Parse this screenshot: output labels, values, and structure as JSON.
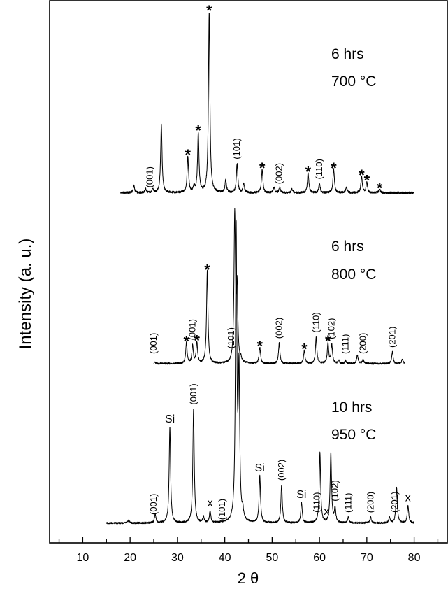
{
  "chart_data": {
    "type": "line",
    "xlabel": "2 θ",
    "ylabel": "Intensity (a. u.)",
    "xlim": [
      3,
      87
    ],
    "x_ticks": [
      10,
      20,
      30,
      40,
      50,
      60,
      70,
      80
    ],
    "grid": false,
    "legend": "none",
    "series": [
      {
        "conditions": [
          "6 hrs",
          "700 °C"
        ],
        "x_range": [
          18,
          80
        ],
        "baseline": 0.04,
        "peaks": [
          {
            "x": 20.8,
            "h": 0.04
          },
          {
            "x": 23.3,
            "h": 0.02
          },
          {
            "x": 24.8,
            "h": 0.02
          },
          {
            "x": 26.6,
            "h": 0.38
          },
          {
            "x": 32.2,
            "h": 0.2
          },
          {
            "x": 33.5,
            "h": 0.03
          },
          {
            "x": 34.4,
            "h": 0.33
          },
          {
            "x": 36.7,
            "h": 1.0
          },
          {
            "x": 40.2,
            "h": 0.07
          },
          {
            "x": 42.6,
            "h": 0.16
          },
          {
            "x": 44.0,
            "h": 0.05
          },
          {
            "x": 47.9,
            "h": 0.13
          },
          {
            "x": 50.4,
            "h": 0.03
          },
          {
            "x": 51.6,
            "h": 0.03
          },
          {
            "x": 54.2,
            "h": 0.02
          },
          {
            "x": 57.6,
            "h": 0.11
          },
          {
            "x": 60.0,
            "h": 0.05
          },
          {
            "x": 63.0,
            "h": 0.13
          },
          {
            "x": 65.7,
            "h": 0.03
          },
          {
            "x": 68.9,
            "h": 0.09
          },
          {
            "x": 70.0,
            "h": 0.06
          },
          {
            "x": 72.7,
            "h": 0.02
          }
        ],
        "annotations": [
          {
            "text": "(001)",
            "x": 24.2,
            "kind": "hkl"
          },
          {
            "text": "*",
            "x": 32.2,
            "kind": "star"
          },
          {
            "text": "*",
            "x": 34.4,
            "kind": "star"
          },
          {
            "text": "*",
            "x": 36.7,
            "kind": "star"
          },
          {
            "text": "(101)",
            "x": 42.6,
            "kind": "hkl"
          },
          {
            "text": "*",
            "x": 47.9,
            "kind": "star"
          },
          {
            "text": "(002)",
            "x": 51.5,
            "kind": "hkl"
          },
          {
            "text": "*",
            "x": 57.6,
            "kind": "star"
          },
          {
            "text": "(110)",
            "x": 60.0,
            "kind": "hkl"
          },
          {
            "text": "*",
            "x": 63.0,
            "kind": "star"
          },
          {
            "text": "*",
            "x": 68.9,
            "kind": "star"
          },
          {
            "text": "*",
            "x": 70.0,
            "kind": "star"
          },
          {
            "text": "*",
            "x": 72.7,
            "kind": "star"
          }
        ]
      },
      {
        "conditions": [
          "6 hrs",
          "800 °C"
        ],
        "x_range": [
          25,
          78
        ],
        "baseline": 0.01,
        "peaks": [
          {
            "x": 25.2,
            "h": 0.01
          },
          {
            "x": 31.9,
            "h": 0.14
          },
          {
            "x": 33.2,
            "h": 0.12
          },
          {
            "x": 34.1,
            "h": 0.14
          },
          {
            "x": 36.3,
            "h": 0.63
          },
          {
            "x": 42.1,
            "h": 1.0
          },
          {
            "x": 42.6,
            "h": 0.48
          },
          {
            "x": 43.4,
            "h": 0.02
          },
          {
            "x": 47.4,
            "h": 0.11
          },
          {
            "x": 51.5,
            "h": 0.14
          },
          {
            "x": 56.8,
            "h": 0.09
          },
          {
            "x": 59.3,
            "h": 0.18
          },
          {
            "x": 61.8,
            "h": 0.14
          },
          {
            "x": 62.6,
            "h": 0.13
          },
          {
            "x": 64.1,
            "h": 0.02
          },
          {
            "x": 65.5,
            "h": 0.02
          },
          {
            "x": 68.0,
            "h": 0.06
          },
          {
            "x": 69.2,
            "h": 0.03
          },
          {
            "x": 75.4,
            "h": 0.08
          },
          {
            "x": 77.5,
            "h": 0.03
          }
        ],
        "annotations": [
          {
            "text": "(001)",
            "x": 25.0,
            "kind": "hkl"
          },
          {
            "text": "*",
            "x": 31.9,
            "kind": "star"
          },
          {
            "text": "(001)",
            "x": 33.2,
            "kind": "hkl"
          },
          {
            "text": "*",
            "x": 34.1,
            "kind": "star"
          },
          {
            "text": "*",
            "x": 36.3,
            "kind": "star"
          },
          {
            "text": "(101)",
            "x": 41.4,
            "kind": "hkl"
          },
          {
            "text": "*",
            "x": 47.4,
            "kind": "star"
          },
          {
            "text": "(002)",
            "x": 51.5,
            "kind": "hkl"
          },
          {
            "text": "*",
            "x": 56.8,
            "kind": "star"
          },
          {
            "text": "(110)",
            "x": 59.3,
            "kind": "hkl"
          },
          {
            "text": "*",
            "x": 61.8,
            "kind": "star"
          },
          {
            "text": "(102)",
            "x": 62.6,
            "kind": "hkl"
          },
          {
            "text": "(111)",
            "x": 65.5,
            "kind": "hkl"
          },
          {
            "text": "(200)",
            "x": 69.2,
            "kind": "hkl"
          },
          {
            "text": "(201)",
            "x": 75.4,
            "kind": "hkl"
          }
        ]
      },
      {
        "conditions": [
          "10 hrs",
          "950 °C"
        ],
        "x_range": [
          15,
          80
        ],
        "baseline": 0.01,
        "peaks": [
          {
            "x": 19.7,
            "h": 0.01
          },
          {
            "x": 25.3,
            "h": 0.03
          },
          {
            "x": 28.4,
            "h": 0.33
          },
          {
            "x": 33.4,
            "h": 0.39
          },
          {
            "x": 35.5,
            "h": 0.02
          },
          {
            "x": 36.9,
            "h": 0.04
          },
          {
            "x": 42.4,
            "h": 1.0
          },
          {
            "x": 43.0,
            "h": 0.5
          },
          {
            "x": 43.8,
            "h": 0.03
          },
          {
            "x": 47.4,
            "h": 0.16
          },
          {
            "x": 52.0,
            "h": 0.13
          },
          {
            "x": 56.2,
            "h": 0.07
          },
          {
            "x": 60.1,
            "h": 0.24
          },
          {
            "x": 62.4,
            "h": 0.24
          },
          {
            "x": 63.3,
            "h": 0.05
          },
          {
            "x": 66.1,
            "h": 0.02
          },
          {
            "x": 70.8,
            "h": 0.02
          },
          {
            "x": 74.8,
            "h": 0.02
          },
          {
            "x": 76.3,
            "h": 0.12
          },
          {
            "x": 78.7,
            "h": 0.06
          }
        ],
        "annotations": [
          {
            "text": "(001)",
            "x": 25.0,
            "kind": "hkl"
          },
          {
            "text": "Si",
            "x": 28.4,
            "kind": "label"
          },
          {
            "text": "(001)",
            "x": 33.4,
            "kind": "hkl"
          },
          {
            "text": "x",
            "x": 36.9,
            "kind": "label"
          },
          {
            "text": "(101)",
            "x": 39.5,
            "kind": "hkl-small"
          },
          {
            "text": "Si",
            "x": 47.4,
            "kind": "label"
          },
          {
            "text": "(002)",
            "x": 52.0,
            "kind": "hkl"
          },
          {
            "text": "Si",
            "x": 56.2,
            "kind": "label"
          },
          {
            "text": "(110)",
            "x": 59.5,
            "kind": "hkl"
          },
          {
            "text": "x",
            "x": 61.5,
            "kind": "label"
          },
          {
            "text": "(102)",
            "x": 63.3,
            "kind": "hkl"
          },
          {
            "text": "(111)",
            "x": 66.1,
            "kind": "hkl"
          },
          {
            "text": "(200)",
            "x": 70.8,
            "kind": "hkl"
          },
          {
            "text": "(201)",
            "x": 75.9,
            "kind": "hkl"
          },
          {
            "text": "x",
            "x": 78.7,
            "kind": "label"
          }
        ]
      }
    ]
  }
}
